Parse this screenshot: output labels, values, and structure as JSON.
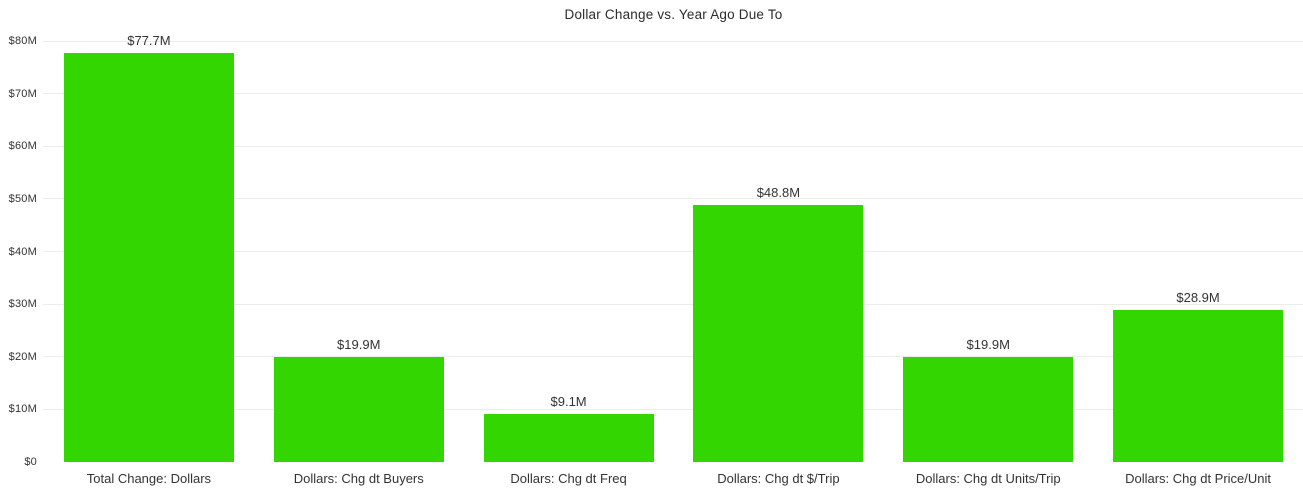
{
  "chart_data": {
    "type": "bar",
    "title": "Dollar Change vs. Year Ago Due To",
    "categories": [
      "Total Change: Dollars",
      "Dollars: Chg dt Buyers",
      "Dollars: Chg dt Freq",
      "Dollars: Chg dt $/Trip",
      "Dollars: Chg dt Units/Trip",
      "Dollars: Chg dt Price/Unit"
    ],
    "values": [
      77.7,
      19.9,
      9.1,
      48.8,
      19.9,
      28.9
    ],
    "value_labels": [
      "$77.7M",
      "$19.9M",
      "$9.1M",
      "$48.8M",
      "$19.9M",
      "$28.9M"
    ],
    "xlabel": "",
    "ylabel": "",
    "ylim": [
      0,
      80
    ],
    "yticks": [
      0,
      10,
      20,
      30,
      40,
      50,
      60,
      70,
      80
    ],
    "ytick_labels": [
      "$0",
      "$10M",
      "$20M",
      "$30M",
      "$40M",
      "$50M",
      "$60M",
      "$70M",
      "$80M"
    ],
    "legend": "none",
    "grid": "horizontal",
    "colors": {
      "bar": "#33d600",
      "gridline": "#ececec",
      "text": "#333333",
      "title": "#2b2b2b",
      "background": "#ffffff"
    }
  }
}
